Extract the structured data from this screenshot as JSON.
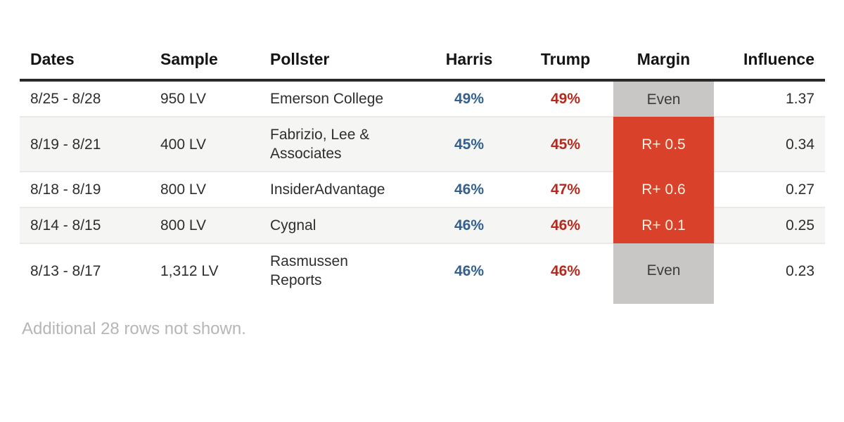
{
  "table": {
    "columns": [
      {
        "key": "dates",
        "label": "Dates"
      },
      {
        "key": "sample",
        "label": "Sample"
      },
      {
        "key": "pollster",
        "label": "Pollster"
      },
      {
        "key": "harris",
        "label": "Harris"
      },
      {
        "key": "trump",
        "label": "Trump"
      },
      {
        "key": "margin",
        "label": "Margin"
      },
      {
        "key": "influence",
        "label": "Influence"
      }
    ],
    "rows": [
      {
        "dates": "8/25 - 8/28",
        "sample": "950 LV",
        "pollster": "Emerson College",
        "harris": "49%",
        "trump": "49%",
        "margin": "Even",
        "margin_type": "even",
        "influence": "1.37"
      },
      {
        "dates": "8/19 - 8/21",
        "sample": "400 LV",
        "pollster": "Fabrizio, Lee & Associates",
        "harris": "45%",
        "trump": "45%",
        "margin": "R+ 0.5",
        "margin_type": "rep",
        "influence": "0.34"
      },
      {
        "dates": "8/18 - 8/19",
        "sample": "800 LV",
        "pollster": "InsiderAdvantage",
        "harris": "46%",
        "trump": "47%",
        "margin": "R+ 0.6",
        "margin_type": "rep",
        "influence": "0.27"
      },
      {
        "dates": "8/14 - 8/15",
        "sample": "800 LV",
        "pollster": "Cygnal",
        "harris": "46%",
        "trump": "46%",
        "margin": "R+ 0.1",
        "margin_type": "rep",
        "influence": "0.25"
      },
      {
        "dates": "8/13 - 8/17",
        "sample": "1,312 LV",
        "pollster": "Rasmussen Reports",
        "harris": "46%",
        "trump": "46%",
        "margin": "Even",
        "margin_type": "even",
        "influence": "0.23"
      }
    ]
  },
  "footer": {
    "note": "Additional 28 rows not shown."
  },
  "colors": {
    "republican_margin_bg": "#d9412b",
    "republican_margin_text": "#fcf0de",
    "even_margin_bg": "#c8c7c5",
    "harris_blue": "#33608f",
    "trump_red": "#b32a1e",
    "row_stripe": "#f5f5f4"
  },
  "chart_data": {
    "type": "table",
    "title": "",
    "columns": [
      "Dates",
      "Sample",
      "Pollster",
      "Harris",
      "Trump",
      "Margin",
      "Influence"
    ],
    "rows": [
      [
        "8/25 - 8/28",
        "950 LV",
        "Emerson College",
        49,
        49,
        "Even",
        1.37
      ],
      [
        "8/19 - 8/21",
        "400 LV",
        "Fabrizio, Lee & Associates",
        45,
        45,
        "R+ 0.5",
        0.34
      ],
      [
        "8/18 - 8/19",
        "800 LV",
        "InsiderAdvantage",
        46,
        47,
        "R+ 0.6",
        0.27
      ],
      [
        "8/14 - 8/15",
        "800 LV",
        "Cygnal",
        46,
        46,
        "R+ 0.1",
        0.25
      ],
      [
        "8/13 - 8/17",
        "1,312 LV",
        "Rasmussen Reports",
        46,
        46,
        "Even",
        0.23
      ]
    ],
    "note": "Additional 28 rows not shown."
  }
}
